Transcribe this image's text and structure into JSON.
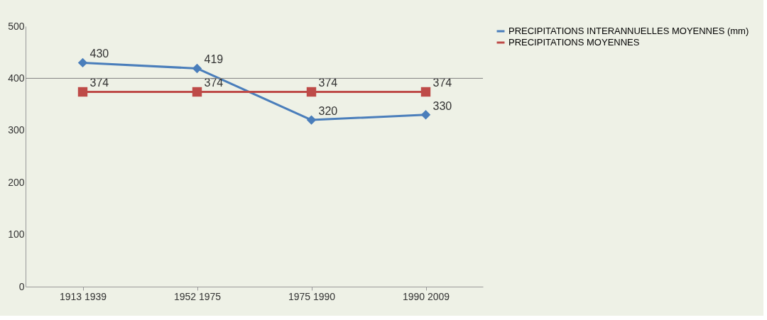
{
  "chart_data": {
    "type": "line",
    "categories": [
      "1913 1939",
      "1952 1975",
      "1975 1990",
      "1990 2009"
    ],
    "series": [
      {
        "name": "PRECIPITATIONS INTERANNUELLES MOYENNES (mm)",
        "color": "#4a7ebb",
        "marker": "diamond",
        "values": [
          430,
          419,
          320,
          330
        ]
      },
      {
        "name": "PRECIPITATIONS MOYENNES",
        "color": "#be4b48",
        "marker": "square",
        "values": [
          374,
          374,
          374,
          374
        ]
      }
    ],
    "ylim": [
      0,
      500
    ],
    "yticks": [
      0,
      100,
      200,
      300,
      400,
      500
    ],
    "grid": false,
    "legend": "right",
    "data_labels": true,
    "ref_lines": [
      {
        "axis": "y",
        "value": 400,
        "color": "#808080"
      }
    ]
  }
}
